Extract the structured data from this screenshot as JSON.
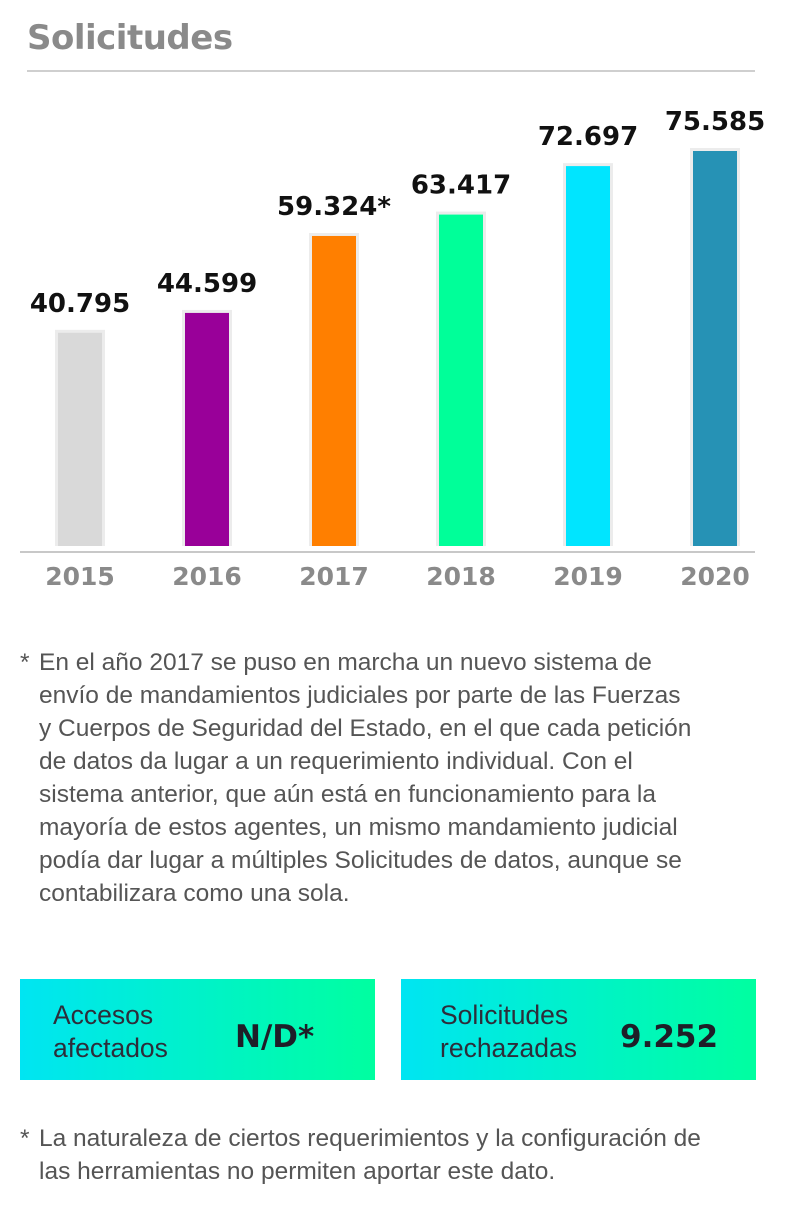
{
  "title": "Solicitudes",
  "chart_data": {
    "type": "bar",
    "categories": [
      "2015",
      "2016",
      "2017",
      "2018",
      "2019",
      "2020"
    ],
    "values": [
      40795,
      44599,
      59324,
      63417,
      72697,
      75585
    ],
    "value_labels": [
      "40.795",
      "44.599",
      "59.324*",
      "63.417",
      "72.697",
      "75.585"
    ],
    "colors": [
      "#d9d9d9",
      "#990099",
      "#ff7f00",
      "#00ff99",
      "#00e5ff",
      "#2692b5"
    ],
    "ylim": [
      0,
      75585
    ],
    "title": "Solicitudes",
    "xlabel": "",
    "ylabel": "",
    "grid": false
  },
  "footnote1": {
    "marker": "*",
    "lines": [
      "En el año 2017 se puso en marcha un nuevo sistema de",
      "envío de mandamientos judiciales por parte de las Fuerzas",
      "y Cuerpos de Seguridad del Estado, en el que cada petición",
      "de datos da lugar a un requerimiento individual. Con el",
      "sistema anterior, que aún está en funcionamiento para la",
      "mayoría de estos agentes, un mismo mandamiento judicial",
      "podía dar lugar a múltiples Solicitudes de datos, aunque se",
      "contabilizara como una sola."
    ]
  },
  "stats": [
    {
      "label_line1": "Accesos",
      "label_line2": "afectados",
      "value": "N/D*"
    },
    {
      "label_line1": "Solicitudes",
      "label_line2": "rechazadas",
      "value": "9.252"
    }
  ],
  "footnote2": {
    "marker": "*",
    "lines": [
      "La naturaleza de ciertos requerimientos y la configuración de",
      "las herramientas no permiten aportar este dato."
    ]
  }
}
